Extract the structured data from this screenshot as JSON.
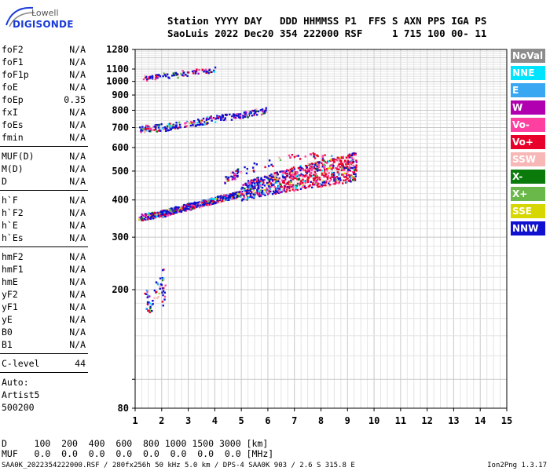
{
  "logo": {
    "line1": "Lowell",
    "line2": "DIGISONDE"
  },
  "header": {
    "line1": "Station YYYY DAY   DDD HHMMSS P1  FFS S AXN PPS IGA PS",
    "line2": "SaoLuis 2022 Dec20 354 222000 RSF     1 715 100 00- 11"
  },
  "params": [
    {
      "name": "foF2",
      "value": "N/A"
    },
    {
      "name": "foF1",
      "value": "N/A"
    },
    {
      "name": "foF1p",
      "value": "N/A"
    },
    {
      "name": "foE",
      "value": "N/A"
    },
    {
      "name": "foEp",
      "value": "0.35"
    },
    {
      "name": "fxI",
      "value": "N/A"
    },
    {
      "name": "foEs",
      "value": "N/A"
    },
    {
      "name": "fmin",
      "value": "N/A"
    },
    {
      "name": "MUF(D)",
      "value": "N/A"
    },
    {
      "name": "M(D)",
      "value": "N/A"
    },
    {
      "name": "D",
      "value": "N/A"
    },
    {
      "name": "h`F",
      "value": "N/A"
    },
    {
      "name": "h`F2",
      "value": "N/A"
    },
    {
      "name": "h`E",
      "value": "N/A"
    },
    {
      "name": "h`Es",
      "value": "N/A"
    },
    {
      "name": "hmF2",
      "value": "N/A"
    },
    {
      "name": "hmF1",
      "value": "N/A"
    },
    {
      "name": "hmE",
      "value": "N/A"
    },
    {
      "name": "yF2",
      "value": "N/A"
    },
    {
      "name": "yF1",
      "value": "N/A"
    },
    {
      "name": "yE",
      "value": "N/A"
    },
    {
      "name": "B0",
      "value": "N/A"
    },
    {
      "name": "B1",
      "value": "N/A"
    },
    {
      "name": "C-level",
      "value": "44"
    }
  ],
  "auto": {
    "line1": "Auto:",
    "line2": "Artist5",
    "line3": "500200"
  },
  "legend": [
    {
      "label": "NoVal",
      "color": "#8c8c8c"
    },
    {
      "label": "NNE",
      "color": "#00e5ff"
    },
    {
      "label": "E",
      "color": "#3aa7f2"
    },
    {
      "label": "W",
      "color": "#b000b0"
    },
    {
      "label": "Vo-",
      "color": "#ff40a0"
    },
    {
      "label": "Vo+",
      "color": "#e8002a"
    },
    {
      "label": "SSW",
      "color": "#f7b7b7"
    },
    {
      "label": "X-",
      "color": "#0a7a0a"
    },
    {
      "label": "X+",
      "color": "#6bb84a"
    },
    {
      "label": "SSE",
      "color": "#d6d600"
    },
    {
      "label": "NNW",
      "color": "#1010d0"
    }
  ],
  "bottom": {
    "d_row": "D     100  200  400  600  800 1000 1500 3000 [km]",
    "muf_row": "MUF   0.0  0.0  0.0  0.0  0.0  0.0  0.0  0.0 [MHz]"
  },
  "footer": {
    "left": "SAA0K_2022354222000.RSF / 280fx256h 50 kHz 5.0 km / DPS-4 SAA0K 903 / 2.6 S 315.8 E",
    "right": "Ion2Png 1.3.17"
  },
  "chart_data": {
    "type": "scatter",
    "xlim": [
      1,
      15
    ],
    "ylim": [
      80,
      1280
    ],
    "y_scale": "log",
    "x_ticks": [
      1,
      2,
      3,
      4,
      5,
      6,
      7,
      8,
      9,
      10,
      11,
      12,
      13,
      14,
      15
    ],
    "y_ticks": [
      80,
      100,
      200,
      300,
      400,
      500,
      600,
      700,
      800,
      900,
      1000,
      1100,
      1280
    ],
    "y_tick_labels": [
      "80",
      "",
      "200",
      "300",
      "400",
      "500",
      "600",
      "700",
      "800",
      "900",
      "1000",
      "1100",
      "1280"
    ],
    "grid": true,
    "traces": [
      {
        "name": "F trace (1st hop)",
        "points": [
          [
            1.2,
            345
          ],
          [
            2.0,
            355
          ],
          [
            2.5,
            365
          ],
          [
            3.0,
            375
          ],
          [
            3.5,
            385
          ],
          [
            4.0,
            395
          ],
          [
            4.5,
            405
          ],
          [
            5.0,
            415
          ],
          [
            5.5,
            425
          ],
          [
            6.0,
            435
          ],
          [
            6.5,
            445
          ],
          [
            7.0,
            455
          ],
          [
            7.5,
            465
          ],
          [
            8.0,
            470
          ],
          [
            8.5,
            480
          ],
          [
            9.0,
            490
          ],
          [
            9.3,
            500
          ]
        ]
      },
      {
        "name": "F trace (2nd hop)",
        "points": [
          [
            1.2,
            680
          ],
          [
            2.0,
            690
          ],
          [
            3.0,
            710
          ],
          [
            4.0,
            740
          ],
          [
            5.0,
            760
          ],
          [
            6.0,
            790
          ]
        ]
      },
      {
        "name": "F trace (3rd hop)",
        "points": [
          [
            1.3,
            1010
          ],
          [
            2.0,
            1030
          ],
          [
            3.0,
            1055
          ],
          [
            4.0,
            1080
          ]
        ]
      },
      {
        "name": "Es blobs",
        "points": [
          [
            4.4,
            460
          ],
          [
            4.7,
            475
          ],
          [
            5.2,
            500
          ],
          [
            7.3,
            560
          ],
          [
            8.5,
            540
          ]
        ]
      },
      {
        "name": "low echoes",
        "points": [
          [
            1.4,
            180
          ],
          [
            1.6,
            160
          ],
          [
            2.0,
            215
          ],
          [
            2.1,
            175
          ]
        ]
      }
    ]
  }
}
